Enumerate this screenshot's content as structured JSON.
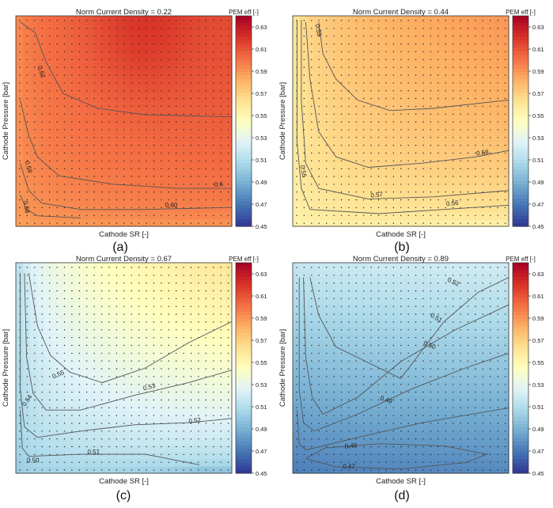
{
  "colors": {
    "colormap": [
      "#313695",
      "#4575b4",
      "#74add1",
      "#abd9e9",
      "#e0f3f8",
      "#ffffbf",
      "#fee090",
      "#fdae61",
      "#f46d43",
      "#d73027",
      "#a50026"
    ],
    "contour_line": "#555555",
    "dot": "#222222"
  },
  "chart_data": [
    {
      "type": "heatmap",
      "panel_label": "(a)",
      "title": "Norm Current Density = 0.22",
      "xlabel": "Cathode SR [-]",
      "ylabel": "Cathode Pressure [bar]",
      "colorbar_label": "PEM eff [-]",
      "colorbar_range": [
        0.45,
        0.64
      ],
      "colorbar_ticks": [
        "0.63",
        "0.61",
        "0.59",
        "0.57",
        "0.55",
        "0.53",
        "0.51",
        "0.49",
        "0.47",
        "0.45"
      ],
      "contour_labels": [
        "0.62",
        "0.6",
        "0.60",
        "0.59",
        "0.58"
      ],
      "value_range": [
        0.575,
        0.625
      ]
    },
    {
      "type": "heatmap",
      "panel_label": "(b)",
      "title": "Norm Current Density = 0.44",
      "xlabel": "Cathode SR [-]",
      "ylabel": "Cathode Pressure [bar]",
      "colorbar_label": "PEM eff [-]",
      "colorbar_range": [
        0.45,
        0.64
      ],
      "colorbar_ticks": [
        "0.63",
        "0.61",
        "0.59",
        "0.57",
        "0.55",
        "0.53",
        "0.51",
        "0.49",
        "0.47",
        "0.45"
      ],
      "contour_labels": [
        "0.59",
        "0.58",
        "0.57",
        "0.56",
        "0.55"
      ],
      "value_range": [
        0.545,
        0.595
      ]
    },
    {
      "type": "heatmap",
      "panel_label": "(c)",
      "title": "Norm Current Density = 0.67",
      "xlabel": "Cathode SR [-]",
      "ylabel": "Cathode Pressure [bar]",
      "colorbar_label": "PEM eff [-]",
      "colorbar_range": [
        0.45,
        0.64
      ],
      "colorbar_ticks": [
        "0.63",
        "0.61",
        "0.59",
        "0.57",
        "0.55",
        "0.53",
        "0.51",
        "0.49",
        "0.47",
        "0.45"
      ],
      "contour_labels": [
        "0.55",
        "0.54",
        "0.53",
        "0.52",
        "0.51",
        "0.50"
      ],
      "value_range": [
        0.495,
        0.565
      ]
    },
    {
      "type": "heatmap",
      "panel_label": "(d)",
      "title": "Norm Current Density = 0.89",
      "xlabel": "Cathode SR [-]",
      "ylabel": "Cathode Pressure [bar]",
      "colorbar_label": "PEM eff [-]",
      "colorbar_range": [
        0.45,
        0.64
      ],
      "colorbar_ticks": [
        "0.63",
        "0.61",
        "0.59",
        "0.57",
        "0.55",
        "0.53",
        "0.51",
        "0.49",
        "0.47",
        "0.45"
      ],
      "contour_labels": [
        "0.52",
        "0.51",
        "0.50",
        "0.49",
        "0.48",
        "0.47"
      ],
      "value_range": [
        0.465,
        0.525
      ]
    }
  ]
}
